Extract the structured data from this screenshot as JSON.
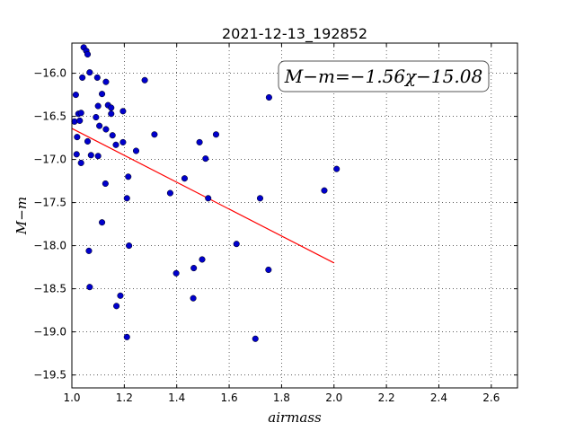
{
  "chart_data": {
    "type": "scatter",
    "title": "2021-12-13_192852",
    "xlabel": "airmass",
    "ylabel": "M−m",
    "xlim": [
      1.0,
      2.7
    ],
    "ylim": [
      -19.65,
      -15.65
    ],
    "x_ticks": [
      "1.0",
      "1.2",
      "1.4",
      "1.6",
      "1.8",
      "2.0",
      "2.2",
      "2.4",
      "2.6"
    ],
    "y_ticks": [
      "−16.0",
      "−16.5",
      "−17.0",
      "−17.5",
      "−18.0",
      "−18.5",
      "−19.0",
      "−19.5"
    ],
    "grid": true,
    "annotation": "M−m=−1.56χ−15.08",
    "fit": {
      "slope": -1.56,
      "intercept": -15.08,
      "x_range": [
        1.0,
        2.0
      ],
      "color": "#ff0000"
    },
    "marker_color": "#0000cc",
    "points": [
      {
        "x": 1.045,
        "y": -15.7
      },
      {
        "x": 1.055,
        "y": -15.74
      },
      {
        "x": 1.06,
        "y": -15.78
      },
      {
        "x": 1.068,
        "y": -15.99
      },
      {
        "x": 1.04,
        "y": -16.05
      },
      {
        "x": 1.097,
        "y": -16.05
      },
      {
        "x": 1.13,
        "y": -16.1
      },
      {
        "x": 1.278,
        "y": -16.08
      },
      {
        "x": 1.015,
        "y": -16.25
      },
      {
        "x": 1.115,
        "y": -16.24
      },
      {
        "x": 1.752,
        "y": -16.28
      },
      {
        "x": 1.1,
        "y": -16.38
      },
      {
        "x": 1.138,
        "y": -16.37
      },
      {
        "x": 1.15,
        "y": -16.4
      },
      {
        "x": 1.025,
        "y": -16.47
      },
      {
        "x": 1.035,
        "y": -16.46
      },
      {
        "x": 1.15,
        "y": -16.47
      },
      {
        "x": 1.195,
        "y": -16.44
      },
      {
        "x": 1.092,
        "y": -16.51
      },
      {
        "x": 1.01,
        "y": -16.56
      },
      {
        "x": 1.03,
        "y": -16.55
      },
      {
        "x": 1.105,
        "y": -16.61
      },
      {
        "x": 1.13,
        "y": -16.65
      },
      {
        "x": 1.155,
        "y": -16.72
      },
      {
        "x": 1.02,
        "y": -16.74
      },
      {
        "x": 1.06,
        "y": -16.79
      },
      {
        "x": 1.168,
        "y": -16.83
      },
      {
        "x": 1.195,
        "y": -16.8
      },
      {
        "x": 1.315,
        "y": -16.71
      },
      {
        "x": 1.55,
        "y": -16.71
      },
      {
        "x": 1.487,
        "y": -16.8
      },
      {
        "x": 1.245,
        "y": -16.9
      },
      {
        "x": 1.018,
        "y": -16.94
      },
      {
        "x": 1.073,
        "y": -16.95
      },
      {
        "x": 1.1,
        "y": -16.96
      },
      {
        "x": 1.035,
        "y": -17.04
      },
      {
        "x": 1.51,
        "y": -16.99
      },
      {
        "x": 2.01,
        "y": -17.11
      },
      {
        "x": 1.215,
        "y": -17.2
      },
      {
        "x": 1.43,
        "y": -17.22
      },
      {
        "x": 1.128,
        "y": -17.28
      },
      {
        "x": 1.375,
        "y": -17.39
      },
      {
        "x": 1.963,
        "y": -17.36
      },
      {
        "x": 1.21,
        "y": -17.45
      },
      {
        "x": 1.52,
        "y": -17.45
      },
      {
        "x": 1.718,
        "y": -17.45
      },
      {
        "x": 1.115,
        "y": -17.73
      },
      {
        "x": 1.218,
        "y": -18.0
      },
      {
        "x": 1.628,
        "y": -17.98
      },
      {
        "x": 1.065,
        "y": -18.06
      },
      {
        "x": 1.497,
        "y": -18.16
      },
      {
        "x": 1.465,
        "y": -18.26
      },
      {
        "x": 1.75,
        "y": -18.28
      },
      {
        "x": 1.398,
        "y": -18.32
      },
      {
        "x": 1.068,
        "y": -18.48
      },
      {
        "x": 1.185,
        "y": -18.58
      },
      {
        "x": 1.463,
        "y": -18.61
      },
      {
        "x": 1.17,
        "y": -18.7
      },
      {
        "x": 1.21,
        "y": -19.06
      },
      {
        "x": 1.7,
        "y": -19.08
      }
    ]
  }
}
